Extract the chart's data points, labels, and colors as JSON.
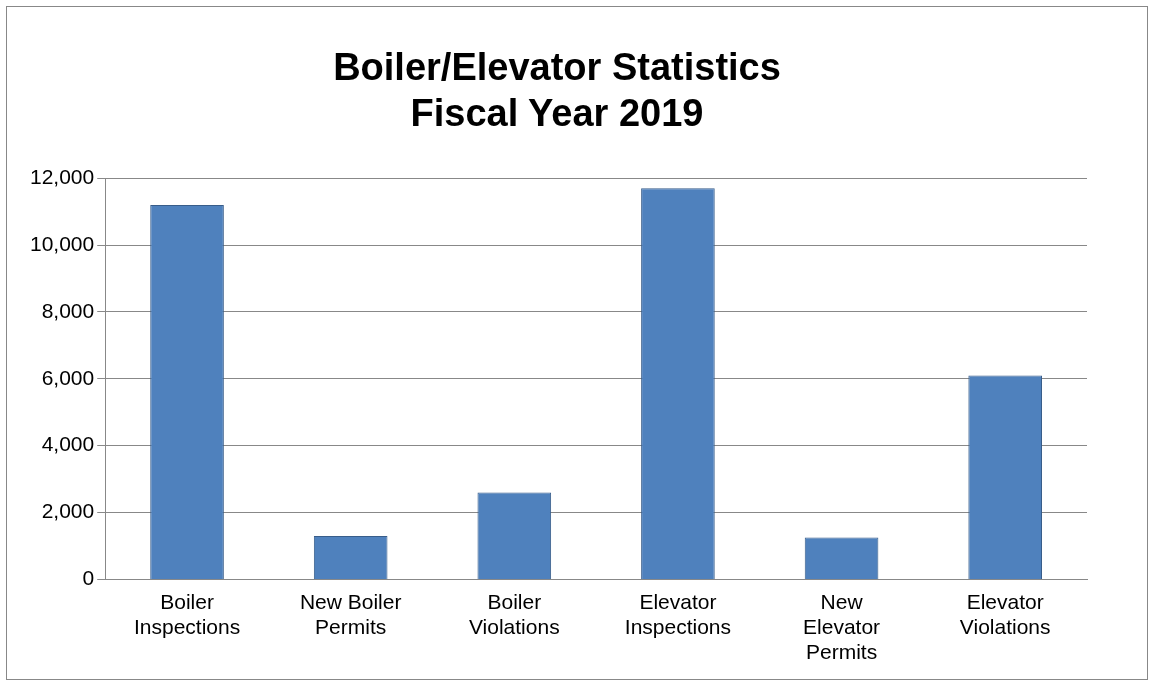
{
  "chart_data": {
    "type": "bar",
    "title": [
      "Boiler/Elevator Statistics",
      "Fiscal Year 2019"
    ],
    "categories": [
      [
        "Boiler",
        "Inspections"
      ],
      [
        "New Boiler",
        "Permits"
      ],
      [
        "Boiler",
        "Violations"
      ],
      [
        "Elevator",
        "Inspections"
      ],
      [
        "New",
        "Elevator",
        "Permits"
      ],
      [
        "Elevator",
        "Violations"
      ]
    ],
    "values": [
      11200,
      1300,
      2600,
      11700,
      1250,
      6100
    ],
    "color": "#4f81bd",
    "ylim": [
      0,
      12000
    ],
    "yticks": [
      {
        "value": 0,
        "label": "0"
      },
      {
        "value": 2000,
        "label": "2,000"
      },
      {
        "value": 4000,
        "label": "4,000"
      },
      {
        "value": 6000,
        "label": "6,000"
      },
      {
        "value": 8000,
        "label": "8,000"
      },
      {
        "value": 10000,
        "label": "10,000"
      },
      {
        "value": 12000,
        "label": "12,000"
      }
    ],
    "grid": "y",
    "legend": false
  }
}
